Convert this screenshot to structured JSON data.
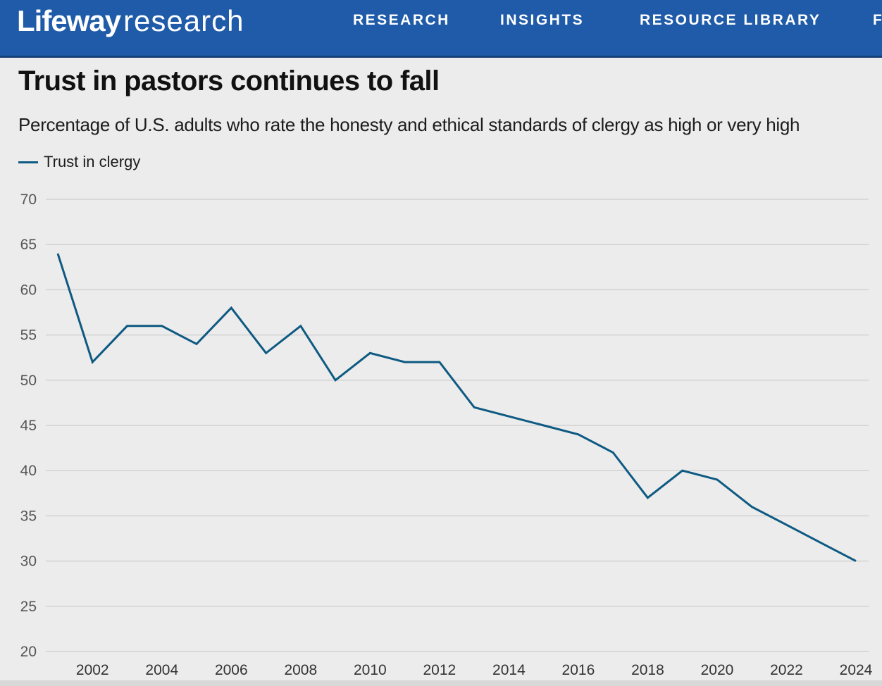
{
  "header": {
    "logo_brand": "Lifeway",
    "logo_sub": "research",
    "nav": [
      "RESEARCH",
      "INSIGHTS",
      "RESOURCE LIBRARY",
      "F"
    ],
    "background_color": "#1f5ba8"
  },
  "chart_data": {
    "type": "line",
    "title": "Trust in pastors continues to fall",
    "subtitle": "Percentage of U.S. adults who rate the honesty and ethical standards of clergy as high or very high",
    "xlabel": "",
    "ylabel": "",
    "ylim": [
      20,
      70
    ],
    "yticks": [
      20,
      25,
      30,
      35,
      40,
      45,
      50,
      55,
      60,
      65,
      70
    ],
    "xlim": [
      2001,
      2024
    ],
    "xticks": [
      2002,
      2004,
      2006,
      2008,
      2010,
      2012,
      2014,
      2016,
      2018,
      2020,
      2022,
      2024
    ],
    "grid": true,
    "legend_position": "top-left",
    "series": [
      {
        "name": "Trust in clergy",
        "color": "#0e5a82",
        "points": [
          {
            "x": 2001,
            "y": 64
          },
          {
            "x": 2002,
            "y": 52
          },
          {
            "x": 2003,
            "y": 56
          },
          {
            "x": 2004,
            "y": 56
          },
          {
            "x": 2005,
            "y": 54
          },
          {
            "x": 2006,
            "y": 58
          },
          {
            "x": 2007,
            "y": 53
          },
          {
            "x": 2008,
            "y": 56
          },
          {
            "x": 2009,
            "y": 50
          },
          {
            "x": 2010,
            "y": 53
          },
          {
            "x": 2011,
            "y": 52
          },
          {
            "x": 2012,
            "y": 52
          },
          {
            "x": 2013,
            "y": 47
          },
          {
            "x": 2014,
            "y": 46
          },
          {
            "x": 2015,
            "y": 45
          },
          {
            "x": 2016,
            "y": 44
          },
          {
            "x": 2017,
            "y": 42
          },
          {
            "x": 2018,
            "y": 37
          },
          {
            "x": 2019,
            "y": 40
          },
          {
            "x": 2020,
            "y": 39
          },
          {
            "x": 2021,
            "y": 36
          },
          {
            "x": 2022,
            "y": 34
          },
          {
            "x": 2023,
            "y": 32
          },
          {
            "x": 2024,
            "y": 30
          }
        ]
      }
    ]
  }
}
